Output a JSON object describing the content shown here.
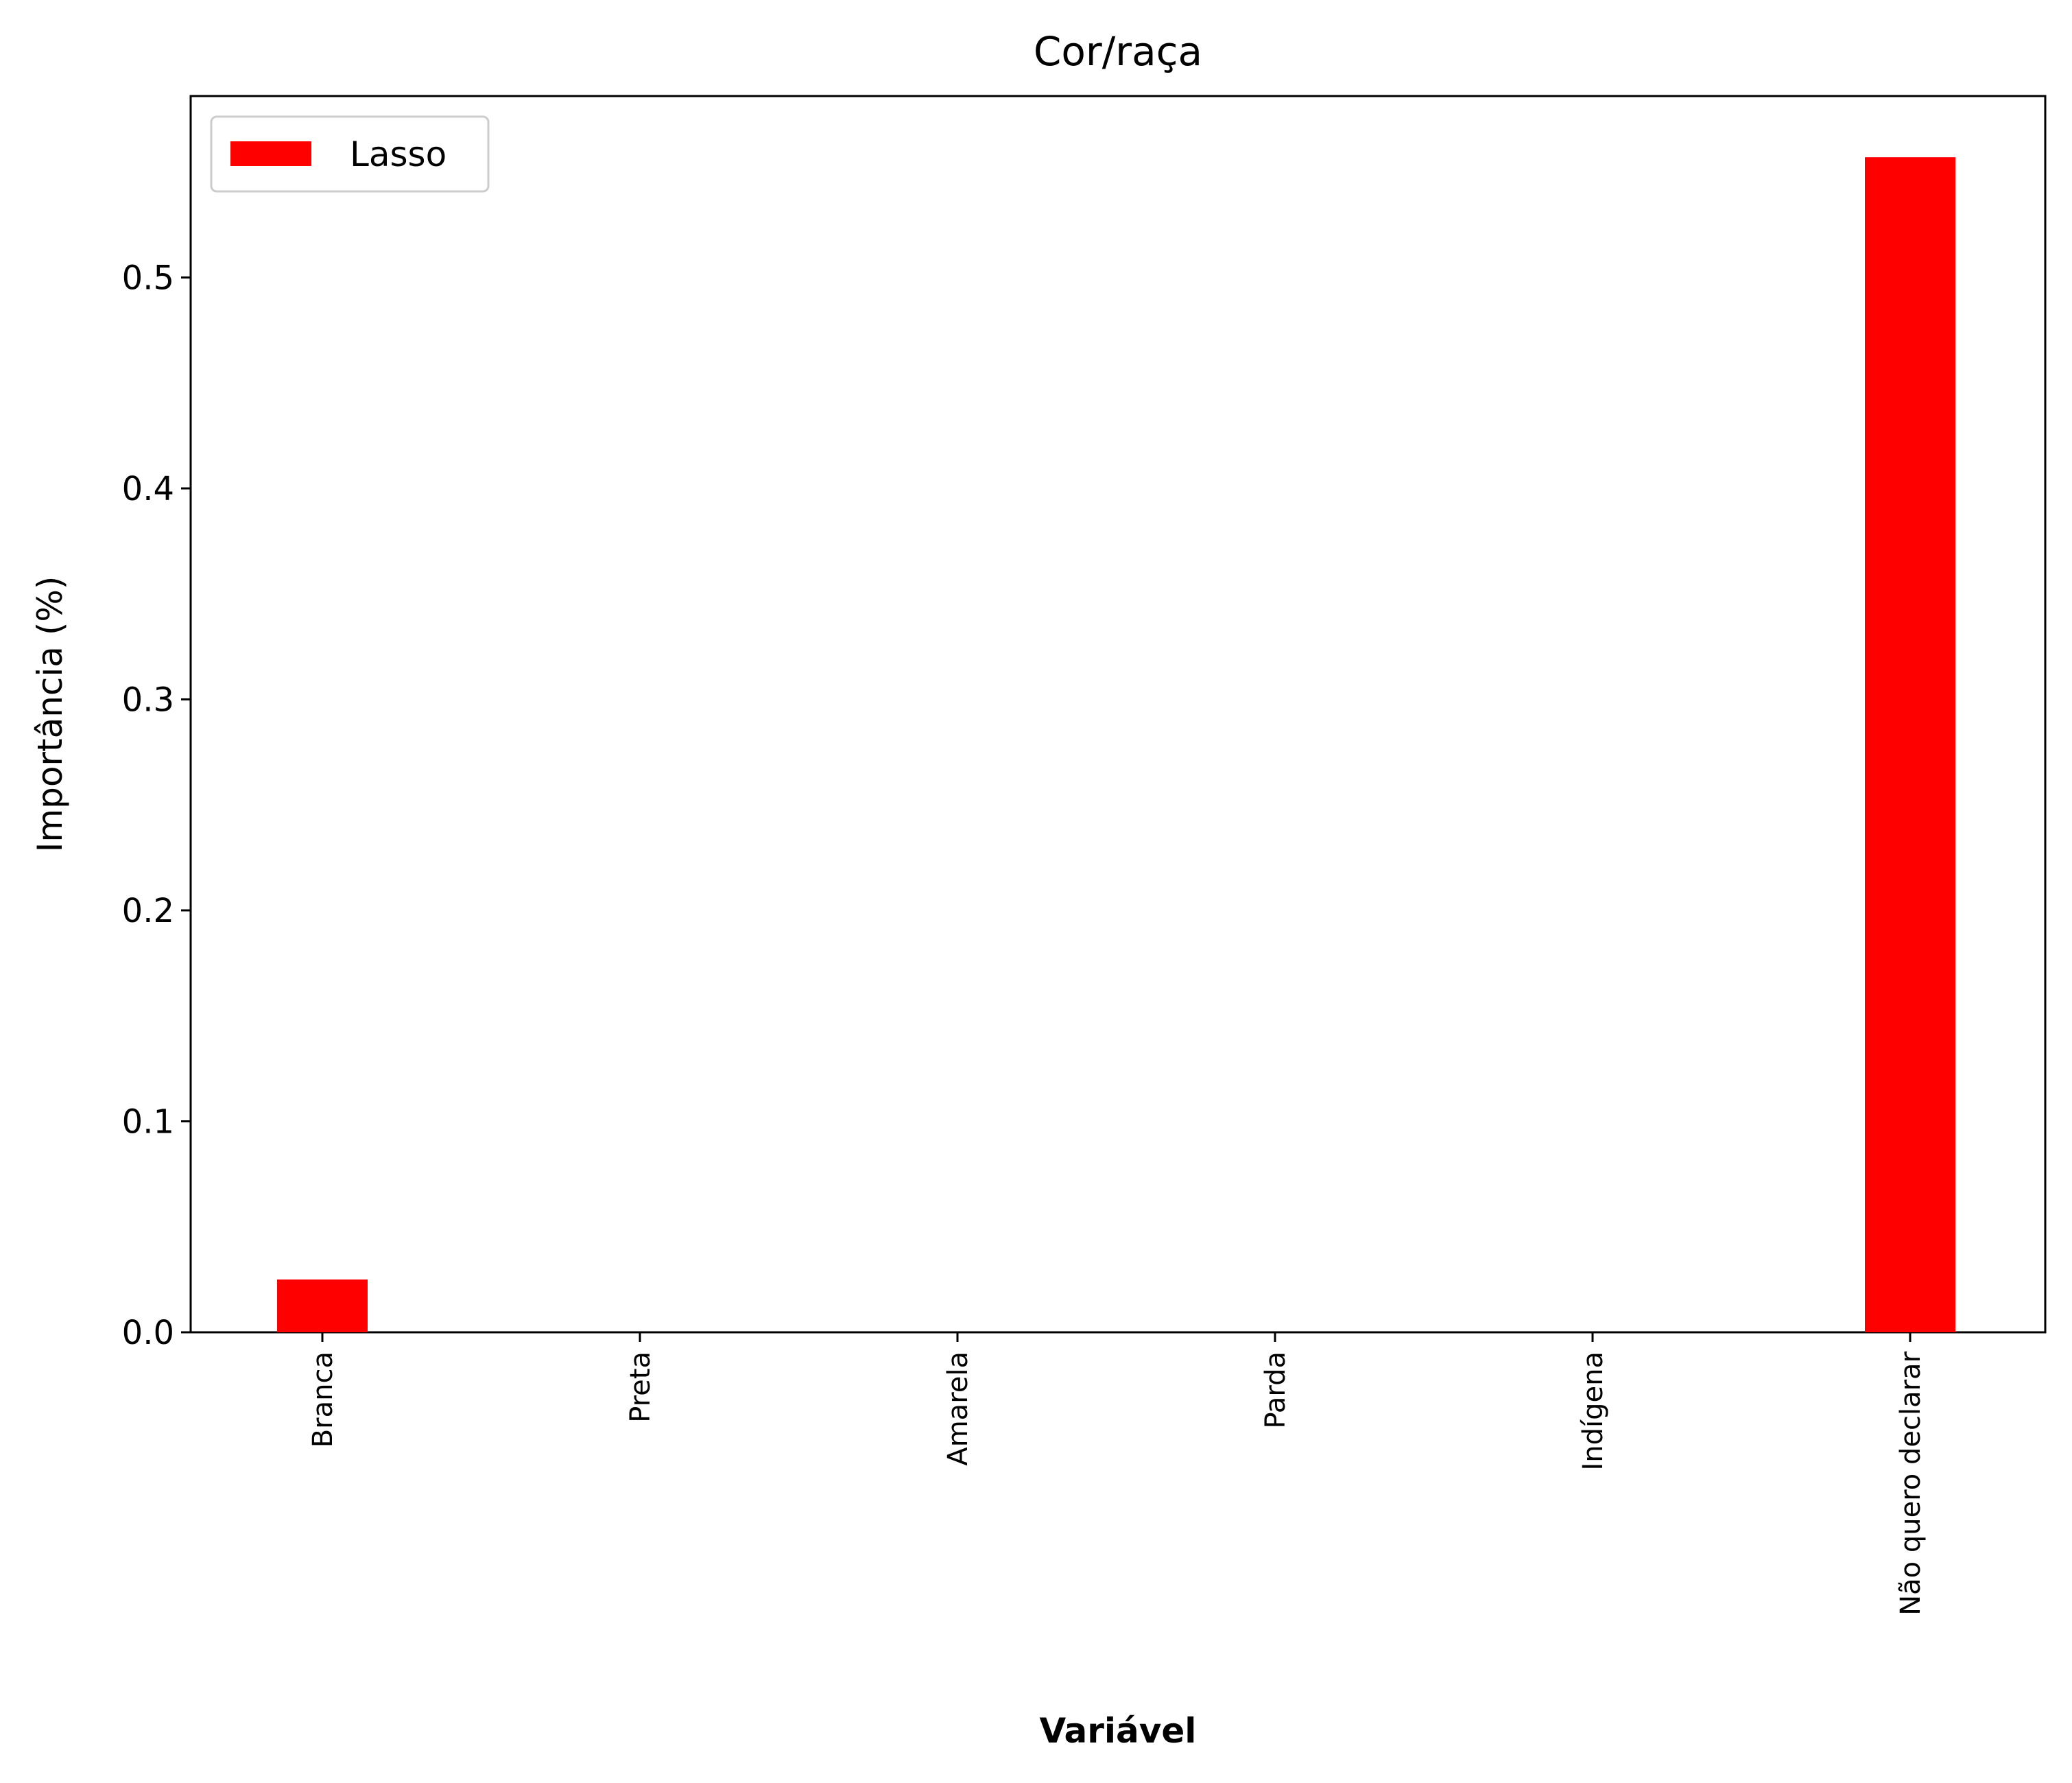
{
  "chart_data": {
    "type": "bar",
    "title": "Cor/raça",
    "xlabel": "Variável",
    "ylabel": "Importância (%)",
    "categories": [
      "Branca",
      "Preta",
      "Amarela",
      "Parda",
      "Indígena",
      "Não quero declarar"
    ],
    "series": [
      {
        "name": "Lasso",
        "values": [
          0.025,
          0.0,
          0.0,
          0.0,
          0.0,
          0.557
        ],
        "color": "#ff0000"
      }
    ],
    "ylim": [
      0,
      0.586
    ],
    "yticks": [
      0.0,
      0.1,
      0.2,
      0.3,
      0.4,
      0.5
    ],
    "ytick_labels": [
      "0.0",
      "0.1",
      "0.2",
      "0.3",
      "0.4",
      "0.5"
    ],
    "grid": false,
    "legend_position": "upper-left",
    "xtick_rotation": "vertical"
  }
}
